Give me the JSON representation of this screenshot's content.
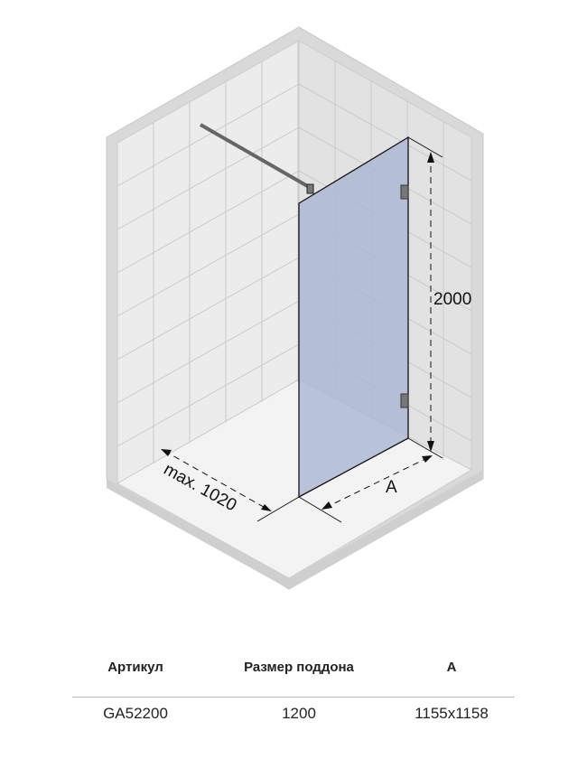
{
  "diagram": {
    "height_label": "2000",
    "width_label": "A",
    "max_label": "max. 1020",
    "colors": {
      "glass": "#a9b6d3",
      "wall": "#e6e6e6",
      "floor": "#f0f0f0",
      "outline": "#111111"
    }
  },
  "table": {
    "headers": [
      "Артикул",
      "Размер поддона",
      "A"
    ],
    "rows": [
      [
        "GA52200",
        "1200",
        "1155x1158"
      ]
    ]
  }
}
